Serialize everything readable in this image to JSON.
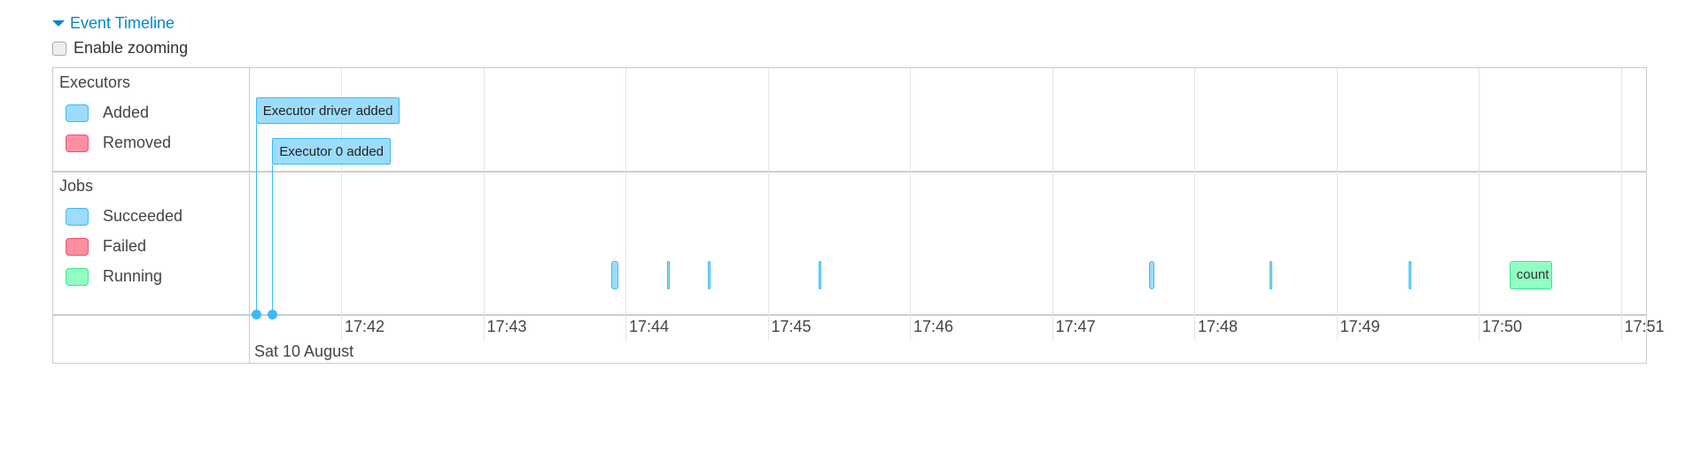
{
  "header": {
    "title": "Event Timeline",
    "toggle_icon": "triangle-down-icon",
    "accent": "#0088cc"
  },
  "zoom_option": {
    "label": "Enable zooming",
    "checked": false
  },
  "groups": {
    "executors": {
      "title": "Executors",
      "legend": [
        {
          "label": "Added",
          "fill": "#9cdcfd",
          "border": "#3db9f9"
        },
        {
          "label": "Removed",
          "fill": "#fd8fa2",
          "border": "#f44e6d"
        }
      ]
    },
    "jobs": {
      "title": "Jobs",
      "legend": [
        {
          "label": "Succeeded",
          "fill": "#9cdcfd",
          "border": "#3db9f9"
        },
        {
          "label": "Failed",
          "fill": "#fd8fa2",
          "border": "#f44e6d"
        },
        {
          "label": "Running",
          "fill": "#92fec4",
          "border": "#3ce689"
        }
      ]
    }
  },
  "axis": {
    "date_label": "Sat 10 August",
    "ticks": [
      "17:42",
      "17:43",
      "17:44",
      "17:45",
      "17:46",
      "17:47",
      "17:48",
      "17:49",
      "17:50",
      "17:51"
    ]
  },
  "executor_events": [
    {
      "label": "Executor driver added",
      "time": "17:41:24",
      "status": "added"
    },
    {
      "label": "Executor 0 added",
      "time": "17:41:31",
      "status": "added"
    }
  ],
  "jobs": [
    {
      "start": "17:43:54",
      "end": "17:43:57",
      "status": "succeeded"
    },
    {
      "start": "17:44:18",
      "end": "17:44:18",
      "status": "succeeded"
    },
    {
      "start": "17:44:35",
      "end": "17:44:35",
      "status": "succeeded"
    },
    {
      "start": "17:45:22",
      "end": "17:45:22",
      "status": "succeeded"
    },
    {
      "start": "17:47:41",
      "end": "17:47:43",
      "status": "succeeded"
    },
    {
      "start": "17:48:32",
      "end": "17:48:32",
      "status": "succeeded"
    },
    {
      "start": "17:49:31",
      "end": "17:49:31",
      "status": "succeeded"
    },
    {
      "start": "17:50:13",
      "end": "17:50:31",
      "status": "running",
      "label": "count"
    }
  ]
}
